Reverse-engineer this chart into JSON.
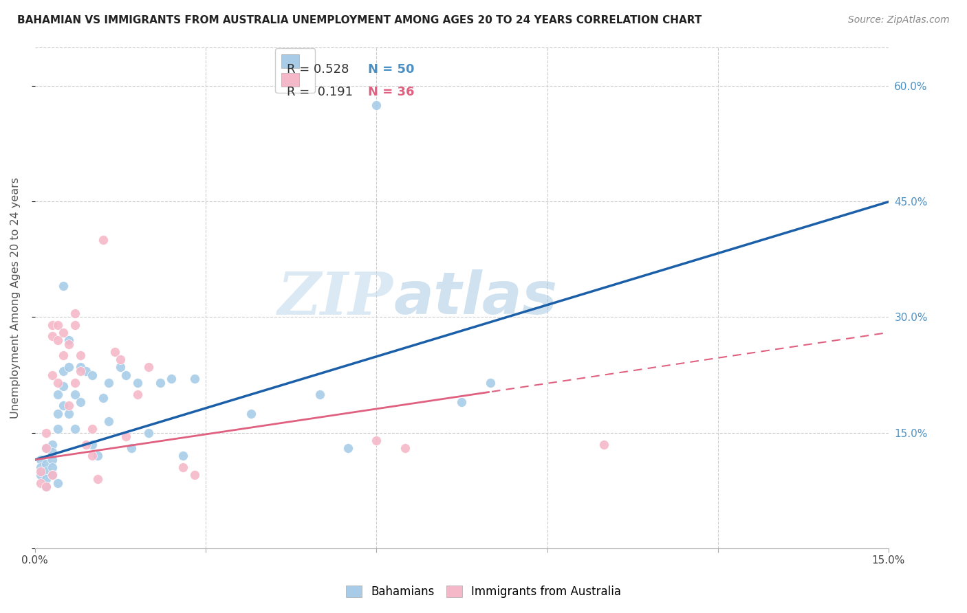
{
  "title": "BAHAMIAN VS IMMIGRANTS FROM AUSTRALIA UNEMPLOYMENT AMONG AGES 20 TO 24 YEARS CORRELATION CHART",
  "source": "Source: ZipAtlas.com",
  "ylabel": "Unemployment Among Ages 20 to 24 years",
  "xlim": [
    0.0,
    0.15
  ],
  "ylim": [
    0.0,
    0.65
  ],
  "watermark_zip": "ZIP",
  "watermark_atlas": "atlas",
  "bahamians_color": "#a8cce8",
  "immigrants_color": "#f5b8c8",
  "line_blue_color": "#1a5fa8",
  "line_pink_solid_color": "#e06080",
  "line_pink_dash_color": "#e06080",
  "legend_R1": "R = 0.528",
  "legend_N1": "N = 50",
  "legend_R2": "R =  0.191",
  "legend_N2": "N = 36",
  "legend_color1": "#4a90c4",
  "legend_color2": "#e06080",
  "blue_intercept": 0.115,
  "blue_slope": 2.23,
  "pink_intercept": 0.115,
  "pink_slope": 1.1,
  "bahamians_x": [
    0.001,
    0.001,
    0.001,
    0.002,
    0.002,
    0.002,
    0.002,
    0.002,
    0.003,
    0.003,
    0.003,
    0.003,
    0.003,
    0.004,
    0.004,
    0.004,
    0.004,
    0.005,
    0.005,
    0.005,
    0.005,
    0.006,
    0.006,
    0.006,
    0.007,
    0.007,
    0.008,
    0.008,
    0.009,
    0.01,
    0.01,
    0.011,
    0.012,
    0.013,
    0.013,
    0.015,
    0.016,
    0.017,
    0.018,
    0.02,
    0.022,
    0.024,
    0.026,
    0.028,
    0.038,
    0.05,
    0.055,
    0.06,
    0.075,
    0.08
  ],
  "bahamians_y": [
    0.115,
    0.105,
    0.095,
    0.13,
    0.11,
    0.1,
    0.09,
    0.08,
    0.135,
    0.125,
    0.115,
    0.105,
    0.095,
    0.2,
    0.175,
    0.155,
    0.085,
    0.34,
    0.23,
    0.21,
    0.185,
    0.27,
    0.235,
    0.175,
    0.2,
    0.155,
    0.235,
    0.19,
    0.23,
    0.225,
    0.135,
    0.12,
    0.195,
    0.215,
    0.165,
    0.235,
    0.225,
    0.13,
    0.215,
    0.15,
    0.215,
    0.22,
    0.12,
    0.22,
    0.175,
    0.2,
    0.13,
    0.575,
    0.19,
    0.215
  ],
  "immigrants_x": [
    0.001,
    0.001,
    0.002,
    0.002,
    0.002,
    0.003,
    0.003,
    0.003,
    0.003,
    0.004,
    0.004,
    0.004,
    0.005,
    0.005,
    0.006,
    0.006,
    0.007,
    0.007,
    0.007,
    0.008,
    0.008,
    0.009,
    0.01,
    0.01,
    0.011,
    0.012,
    0.014,
    0.015,
    0.016,
    0.018,
    0.02,
    0.026,
    0.028,
    0.06,
    0.065,
    0.1
  ],
  "immigrants_y": [
    0.1,
    0.085,
    0.15,
    0.13,
    0.08,
    0.29,
    0.275,
    0.225,
    0.095,
    0.29,
    0.27,
    0.215,
    0.28,
    0.25,
    0.265,
    0.185,
    0.305,
    0.29,
    0.215,
    0.25,
    0.23,
    0.135,
    0.155,
    0.12,
    0.09,
    0.4,
    0.255,
    0.245,
    0.145,
    0.2,
    0.235,
    0.105,
    0.095,
    0.14,
    0.13,
    0.135
  ]
}
